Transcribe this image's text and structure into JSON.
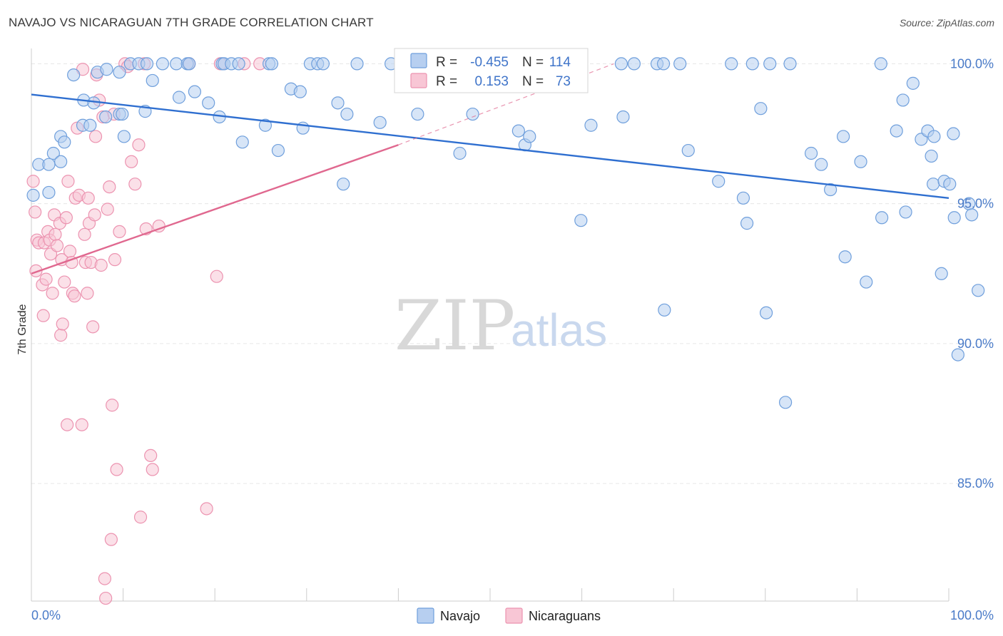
{
  "header": {
    "title": "NAVAJO VS NICARAGUAN 7TH GRADE CORRELATION CHART",
    "source": "Source: ZipAtlas.com"
  },
  "watermark": {
    "zip": "ZIP",
    "atlas": "atlas"
  },
  "stats_box": {
    "rows": [
      {
        "r_label": "R =",
        "r_value": "-0.455",
        "n_label": "N =",
        "n_value": "114"
      },
      {
        "r_label": "R =",
        "r_value": "0.153",
        "n_label": "N =",
        "n_value": "73"
      }
    ]
  },
  "colors": {
    "navajo_fill": "#b7cff0",
    "navajo_stroke": "#6f9fdc",
    "navajo_line": "#2f6fd0",
    "nicaraguan_fill": "#f8c6d5",
    "nicaraguan_stroke": "#ec93b0",
    "nicaraguan_line": "#e0688f",
    "tick_text": "#4a7bc8",
    "grid": "#e6e6e6"
  },
  "chart_data": {
    "type": "scatter",
    "title": "NAVAJO VS NICARAGUAN 7TH GRADE CORRELATION CHART",
    "xlabel": "",
    "ylabel": "7th Grade",
    "xlim": [
      0,
      100
    ],
    "ylim": [
      80.8,
      100.8
    ],
    "x_tick_labels": [
      "0.0%",
      "100.0%"
    ],
    "y_ticks": [
      85,
      90,
      95,
      100
    ],
    "y_tick_labels": [
      "85.0%",
      "90.0%",
      "95.0%",
      "100.0%"
    ],
    "grid": true,
    "legend_position": "bottom-center",
    "series": [
      {
        "name": "Navajo",
        "r": -0.455,
        "n": 114,
        "trend": {
          "x": [
            0,
            100
          ],
          "y": [
            98.9,
            95.2
          ],
          "dashed_to": null
        },
        "points": [
          [
            0.2,
            95.3
          ],
          [
            0.8,
            96.4
          ],
          [
            1.9,
            95.4
          ],
          [
            1.9,
            96.4
          ],
          [
            2.4,
            96.8
          ],
          [
            3.2,
            96.5
          ],
          [
            3.2,
            97.4
          ],
          [
            3.6,
            97.2
          ],
          [
            4.6,
            99.6
          ],
          [
            5.6,
            97.8
          ],
          [
            5.7,
            98.7
          ],
          [
            6.4,
            97.8
          ],
          [
            6.8,
            98.6
          ],
          [
            7.2,
            99.7
          ],
          [
            8.1,
            98.1
          ],
          [
            8.2,
            99.8
          ],
          [
            9.6,
            99.7
          ],
          [
            9.6,
            98.2
          ],
          [
            9.9,
            98.2
          ],
          [
            10.1,
            97.4
          ],
          [
            10.8,
            100.0
          ],
          [
            11.7,
            100.0
          ],
          [
            12.4,
            98.3
          ],
          [
            12.6,
            100.0
          ],
          [
            13.2,
            99.4
          ],
          [
            14.3,
            100.0
          ],
          [
            15.8,
            100.0
          ],
          [
            16.1,
            98.8
          ],
          [
            17.0,
            100.0
          ],
          [
            17.2,
            100.0
          ],
          [
            17.8,
            99.0
          ],
          [
            19.3,
            98.6
          ],
          [
            20.5,
            98.1
          ],
          [
            20.8,
            100.0
          ],
          [
            21.0,
            100.0
          ],
          [
            21.8,
            100.0
          ],
          [
            22.6,
            100.0
          ],
          [
            23.0,
            97.2
          ],
          [
            25.5,
            97.8
          ],
          [
            25.9,
            100.0
          ],
          [
            26.2,
            100.0
          ],
          [
            26.9,
            96.9
          ],
          [
            28.3,
            99.1
          ],
          [
            29.3,
            99.0
          ],
          [
            29.6,
            97.7
          ],
          [
            30.4,
            100.0
          ],
          [
            31.2,
            100.0
          ],
          [
            31.8,
            100.0
          ],
          [
            33.4,
            98.6
          ],
          [
            34.0,
            95.7
          ],
          [
            34.4,
            98.2
          ],
          [
            35.5,
            100.0
          ],
          [
            38.0,
            97.9
          ],
          [
            39.2,
            100.0
          ],
          [
            40.3,
            99.4
          ],
          [
            41.2,
            99.4
          ],
          [
            42.1,
            98.2
          ],
          [
            42.4,
            100.0
          ],
          [
            42.9,
            100.0
          ],
          [
            43.0,
            100.0
          ],
          [
            46.7,
            96.8
          ],
          [
            48.1,
            98.2
          ],
          [
            52.6,
            100.0
          ],
          [
            53.1,
            97.6
          ],
          [
            53.8,
            97.1
          ],
          [
            54.3,
            97.4
          ],
          [
            56.3,
            100.0
          ],
          [
            59.9,
            94.4
          ],
          [
            61.0,
            97.8
          ],
          [
            64.3,
            100.0
          ],
          [
            64.5,
            98.1
          ],
          [
            65.7,
            100.0
          ],
          [
            68.2,
            100.0
          ],
          [
            68.9,
            100.0
          ],
          [
            69.0,
            91.2
          ],
          [
            70.7,
            100.0
          ],
          [
            71.6,
            96.9
          ],
          [
            74.9,
            95.8
          ],
          [
            76.3,
            100.0
          ],
          [
            77.6,
            95.2
          ],
          [
            78.0,
            94.3
          ],
          [
            78.6,
            100.0
          ],
          [
            79.5,
            98.4
          ],
          [
            80.1,
            91.1
          ],
          [
            80.5,
            100.0
          ],
          [
            82.2,
            87.9
          ],
          [
            82.7,
            100.0
          ],
          [
            85.0,
            96.8
          ],
          [
            86.1,
            96.4
          ],
          [
            87.1,
            95.5
          ],
          [
            88.5,
            97.4
          ],
          [
            88.7,
            93.1
          ],
          [
            90.4,
            96.5
          ],
          [
            91.0,
            92.2
          ],
          [
            92.6,
            100.0
          ],
          [
            92.7,
            94.5
          ],
          [
            94.3,
            97.6
          ],
          [
            95.0,
            98.7
          ],
          [
            95.3,
            94.7
          ],
          [
            96.1,
            99.3
          ],
          [
            97.0,
            97.3
          ],
          [
            97.7,
            97.6
          ],
          [
            98.1,
            96.7
          ],
          [
            98.4,
            97.4
          ],
          [
            98.3,
            95.7
          ],
          [
            99.2,
            92.5
          ],
          [
            99.5,
            95.8
          ],
          [
            100.1,
            95.7
          ],
          [
            100.5,
            97.5
          ],
          [
            100.6,
            94.5
          ],
          [
            101.0,
            89.6
          ],
          [
            102.2,
            95.0
          ],
          [
            102.5,
            94.6
          ],
          [
            103.2,
            91.9
          ]
        ]
      },
      {
        "name": "Nicaraguans",
        "r": 0.153,
        "n": 73,
        "trend": {
          "x": [
            0,
            40
          ],
          "y": [
            92.5,
            97.1
          ],
          "dashed_to": [
            63.5,
            100.0
          ]
        },
        "points": [
          [
            0.2,
            95.8
          ],
          [
            0.4,
            94.7
          ],
          [
            0.5,
            92.6
          ],
          [
            0.6,
            93.7
          ],
          [
            0.8,
            93.6
          ],
          [
            1.2,
            92.1
          ],
          [
            1.3,
            91.0
          ],
          [
            1.4,
            93.6
          ],
          [
            1.6,
            92.3
          ],
          [
            1.8,
            94.0
          ],
          [
            2.0,
            93.7
          ],
          [
            2.1,
            93.2
          ],
          [
            2.3,
            91.8
          ],
          [
            2.5,
            94.6
          ],
          [
            2.6,
            93.9
          ],
          [
            2.8,
            93.5
          ],
          [
            3.1,
            94.3
          ],
          [
            3.2,
            90.3
          ],
          [
            3.3,
            93.0
          ],
          [
            3.4,
            90.7
          ],
          [
            3.6,
            92.2
          ],
          [
            3.8,
            94.5
          ],
          [
            3.9,
            87.1
          ],
          [
            4.0,
            95.8
          ],
          [
            4.2,
            93.3
          ],
          [
            4.4,
            92.9
          ],
          [
            4.5,
            91.8
          ],
          [
            4.7,
            91.7
          ],
          [
            4.8,
            95.2
          ],
          [
            5.0,
            97.7
          ],
          [
            5.2,
            95.3
          ],
          [
            5.5,
            87.1
          ],
          [
            5.6,
            99.8
          ],
          [
            5.8,
            93.9
          ],
          [
            5.9,
            92.9
          ],
          [
            6.1,
            91.8
          ],
          [
            6.2,
            95.2
          ],
          [
            6.3,
            94.3
          ],
          [
            6.5,
            92.9
          ],
          [
            6.7,
            90.6
          ],
          [
            6.9,
            94.6
          ],
          [
            7.0,
            97.4
          ],
          [
            7.1,
            99.6
          ],
          [
            7.4,
            98.7
          ],
          [
            7.6,
            92.8
          ],
          [
            7.8,
            98.1
          ],
          [
            8.0,
            81.6
          ],
          [
            8.1,
            80.9
          ],
          [
            8.3,
            94.8
          ],
          [
            8.5,
            95.6
          ],
          [
            8.7,
            83.0
          ],
          [
            8.8,
            87.8
          ],
          [
            9.0,
            98.2
          ],
          [
            9.1,
            93.0
          ],
          [
            9.3,
            85.5
          ],
          [
            9.6,
            94.0
          ],
          [
            10.2,
            100.0
          ],
          [
            10.5,
            99.9
          ],
          [
            10.9,
            96.5
          ],
          [
            11.3,
            95.7
          ],
          [
            11.7,
            97.1
          ],
          [
            11.9,
            83.8
          ],
          [
            12.3,
            100.0
          ],
          [
            12.5,
            94.1
          ],
          [
            13.0,
            86.0
          ],
          [
            13.2,
            85.5
          ],
          [
            13.9,
            94.2
          ],
          [
            17.2,
            100.0
          ],
          [
            19.1,
            84.1
          ],
          [
            20.2,
            92.4
          ],
          [
            20.6,
            100.0
          ],
          [
            23.2,
            100.0
          ],
          [
            24.9,
            100.0
          ]
        ]
      }
    ]
  },
  "legend": {
    "items": [
      {
        "label": "Navajo"
      },
      {
        "label": "Nicaraguans"
      }
    ]
  }
}
